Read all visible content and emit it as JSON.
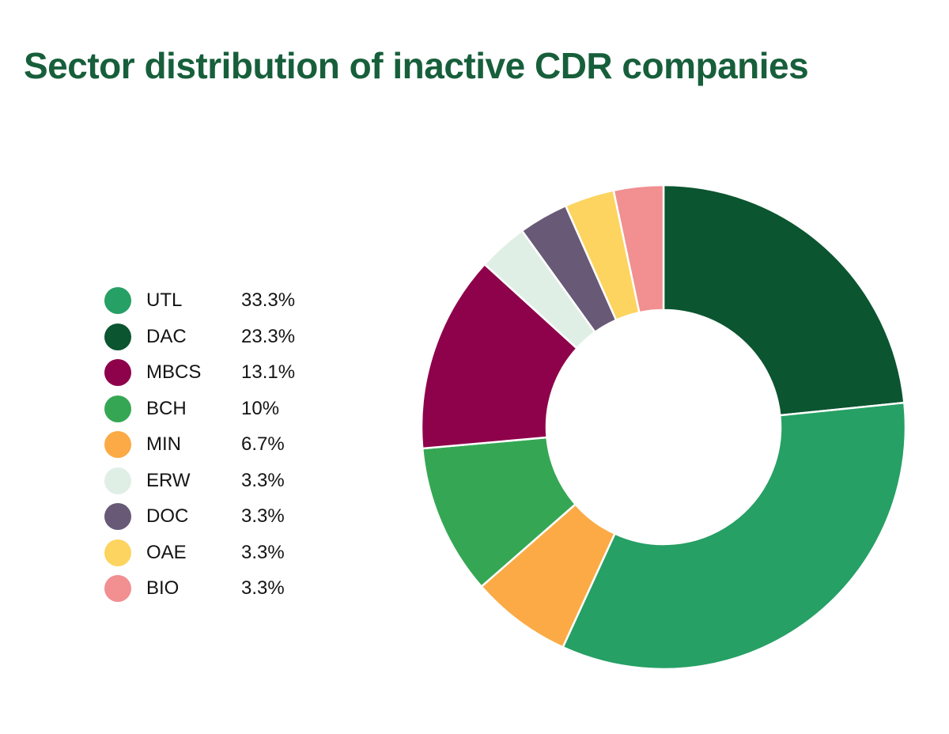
{
  "page": {
    "title": "Sector distribution of inactive CDR companies",
    "title_color": "#175f3b",
    "background_color": "#ffffff"
  },
  "chart_data": {
    "type": "pie",
    "style": "donut",
    "title": "Sector distribution of inactive CDR companies",
    "legend_position": "left",
    "direction": "clockwise",
    "rotation_start_deg": 0,
    "inner_radius_ratio": 0.48,
    "segment_divider_color": "#ffffff",
    "segments": [
      {
        "label": "UTL",
        "value_pct": 33.3,
        "display": "33.3%",
        "color": "#26a065"
      },
      {
        "label": "DAC",
        "value_pct": 23.3,
        "display": "23.3%",
        "color": "#0b5530"
      },
      {
        "label": "MBCS",
        "value_pct": 13.1,
        "display": "13.1%",
        "color": "#8e014b"
      },
      {
        "label": "BCH",
        "value_pct": 10,
        "display": "10%",
        "color": "#35a754"
      },
      {
        "label": "MIN",
        "value_pct": 6.7,
        "display": "6.7%",
        "color": "#fbaa45"
      },
      {
        "label": "ERW",
        "value_pct": 3.3,
        "display": "3.3%",
        "color": "#e0efe6"
      },
      {
        "label": "DOC",
        "value_pct": 3.3,
        "display": "3.3%",
        "color": "#685977"
      },
      {
        "label": "OAE",
        "value_pct": 3.3,
        "display": "3.3%",
        "color": "#fcd45f"
      },
      {
        "label": "BIO",
        "value_pct": 3.3,
        "display": "3.3%",
        "color": "#f18f91"
      }
    ],
    "pie_draw_order": [
      "DAC",
      "UTL",
      "MIN",
      "BCH",
      "MBCS",
      "ERW",
      "DOC",
      "OAE",
      "BIO"
    ]
  }
}
